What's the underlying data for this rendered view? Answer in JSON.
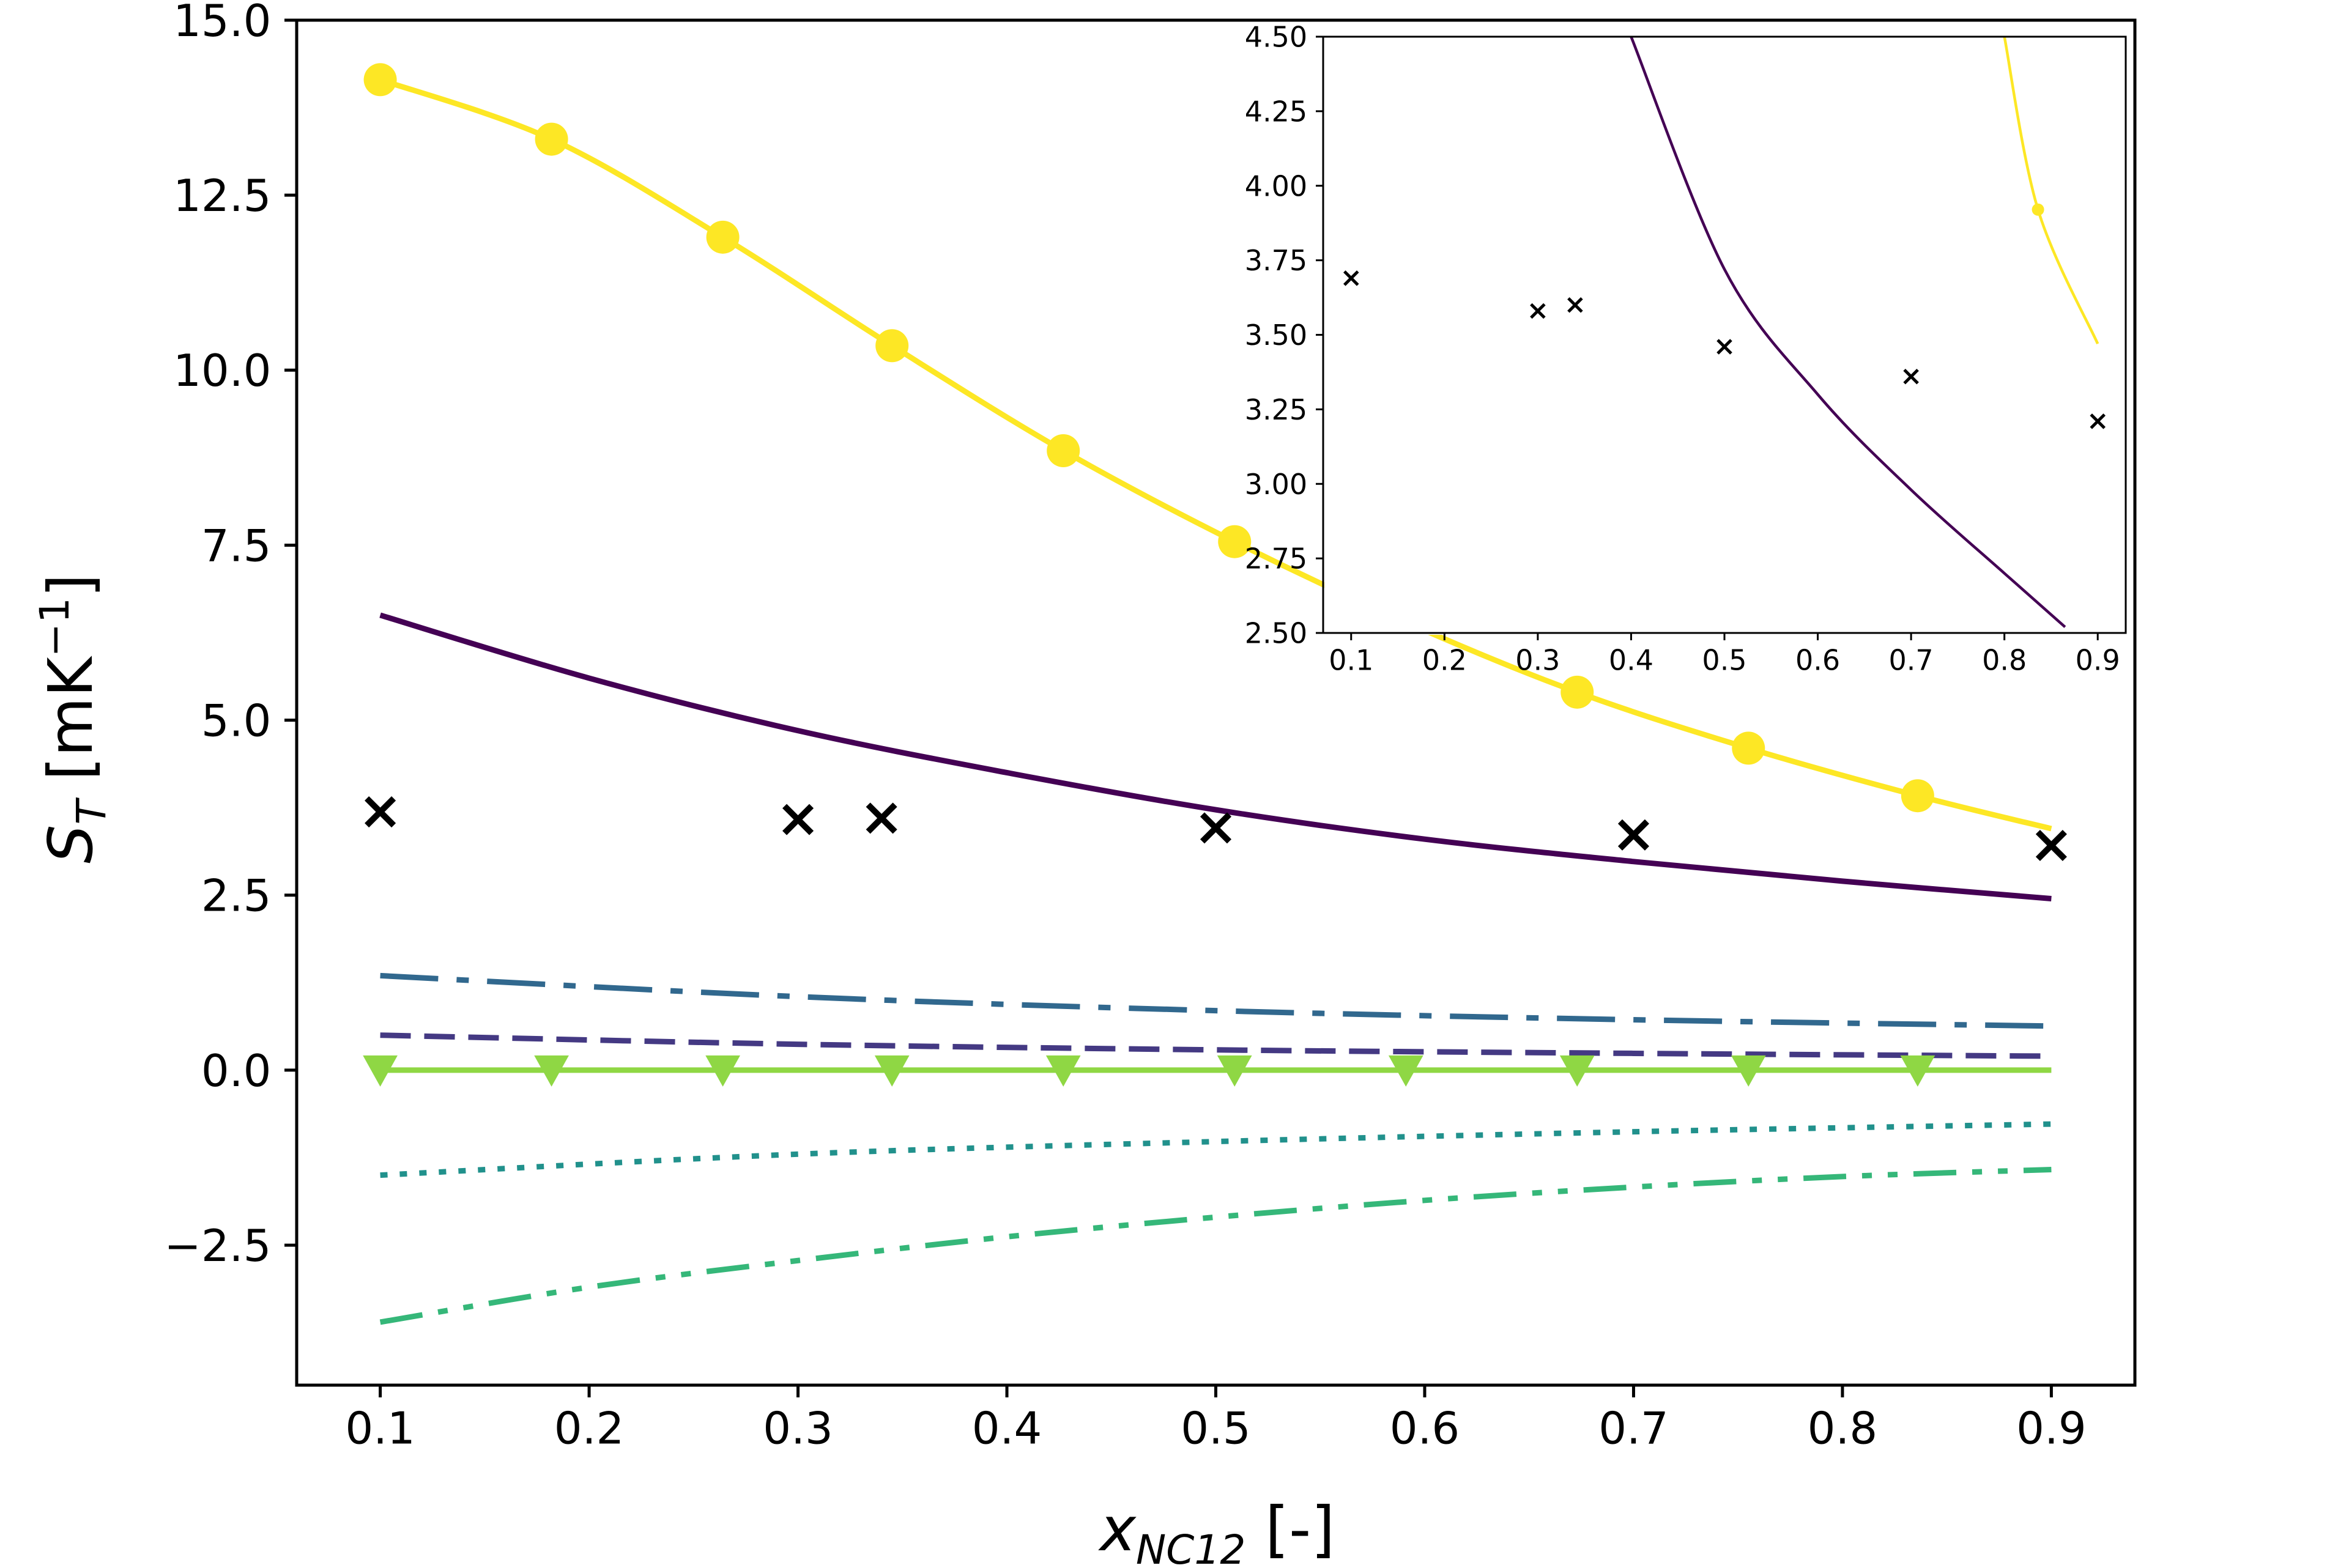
{
  "chart_data": [
    {
      "type": "line",
      "xlabel": "x_NC12 [-]",
      "ylabel": "S_T [mK^-1]",
      "xlim": [
        0.06,
        0.94
      ],
      "ylim": [
        -4.5,
        15.0
      ],
      "xticks": [
        0.1,
        0.2,
        0.3,
        0.4,
        0.5,
        0.6,
        0.7,
        0.8,
        0.9
      ],
      "xtick_labels": [
        "0.1",
        "0.2",
        "0.3",
        "0.4",
        "0.5",
        "0.6",
        "0.7",
        "0.8",
        "0.9"
      ],
      "yticks": [
        15.0,
        12.5,
        10.0,
        7.5,
        5.0,
        2.5,
        0.0,
        -2.5
      ],
      "ytick_labels": [
        "15.0",
        "12.5",
        "10.0",
        "7.5",
        "5.0",
        "2.5",
        "0.0",
        "−2.5"
      ],
      "grid": false,
      "legend": "none",
      "series": [
        {
          "style": "solid-circle",
          "color": "#fde725",
          "x": [
            0.1,
            0.182,
            0.264,
            0.345,
            0.427,
            0.509,
            0.591,
            0.673,
            0.755,
            0.836,
            0.9
          ],
          "y": [
            14.15,
            13.3,
            11.9,
            10.35,
            8.85,
            7.55,
            6.4,
            5.4,
            4.6,
            3.92,
            3.45
          ],
          "markers_at": [
            0.1,
            0.182,
            0.264,
            0.345,
            0.427,
            0.509,
            0.673,
            0.755,
            0.836
          ]
        },
        {
          "style": "solid",
          "color": "#440154",
          "x": [
            0.1,
            0.2,
            0.3,
            0.4,
            0.5,
            0.6,
            0.7,
            0.8,
            0.9
          ],
          "y": [
            6.5,
            5.6,
            4.85,
            4.25,
            3.72,
            3.3,
            2.98,
            2.7,
            2.45
          ]
        },
        {
          "style": "dashdot",
          "color": "#31688e",
          "x": [
            0.1,
            0.3,
            0.5,
            0.7,
            0.9
          ],
          "y": [
            1.35,
            1.05,
            0.85,
            0.72,
            0.63
          ]
        },
        {
          "style": "dashed",
          "color": "#443983",
          "x": [
            0.1,
            0.3,
            0.5,
            0.7,
            0.9
          ],
          "y": [
            0.5,
            0.37,
            0.29,
            0.24,
            0.2
          ]
        },
        {
          "style": "solid-triangle",
          "color": "#8fd744",
          "x": [
            0.1,
            0.9
          ],
          "y": [
            0.0,
            0.0
          ],
          "markers_at": [
            0.1,
            0.182,
            0.264,
            0.345,
            0.427,
            0.509,
            0.591,
            0.673,
            0.755,
            0.836
          ]
        },
        {
          "style": "dotted",
          "color": "#21918c",
          "x": [
            0.1,
            0.3,
            0.5,
            0.7,
            0.9
          ],
          "y": [
            -1.5,
            -1.2,
            -1.02,
            -0.88,
            -0.77
          ]
        },
        {
          "style": "dashdotdot",
          "color": "#35b779",
          "x": [
            0.1,
            0.2,
            0.3,
            0.4,
            0.5,
            0.6,
            0.7,
            0.8,
            0.9
          ],
          "y": [
            -3.6,
            -3.1,
            -2.72,
            -2.38,
            -2.1,
            -1.86,
            -1.67,
            -1.52,
            -1.42
          ]
        },
        {
          "style": "x-markers",
          "color": "#000000",
          "x": [
            0.1,
            0.3,
            0.34,
            0.5,
            0.7,
            0.9
          ],
          "y": [
            3.69,
            3.58,
            3.6,
            3.46,
            3.36,
            3.21
          ]
        }
      ]
    },
    {
      "type": "line",
      "inset": true,
      "xlim": [
        0.07,
        0.93
      ],
      "ylim": [
        2.5,
        4.5
      ],
      "xticks": [
        0.1,
        0.2,
        0.3,
        0.4,
        0.5,
        0.6,
        0.7,
        0.8,
        0.9
      ],
      "xtick_labels": [
        "0.1",
        "0.2",
        "0.3",
        "0.4",
        "0.5",
        "0.6",
        "0.7",
        "0.8",
        "0.9"
      ],
      "yticks": [
        4.5,
        4.25,
        4.0,
        3.75,
        3.5,
        3.25,
        3.0,
        2.75,
        2.5
      ],
      "ytick_labels": [
        "4.50",
        "4.25",
        "4.00",
        "3.75",
        "3.50",
        "3.25",
        "3.00",
        "2.75",
        "2.50"
      ],
      "grid": false,
      "legend": "none",
      "series": [
        {
          "style": "solid",
          "color": "#440154",
          "x": [
            0.4,
            0.5,
            0.6,
            0.7,
            0.8,
            0.865
          ],
          "y": [
            4.5,
            3.72,
            3.3,
            2.98,
            2.7,
            2.52
          ]
        },
        {
          "style": "solid-circle",
          "color": "#fde725",
          "x": [
            0.8,
            0.836,
            0.9
          ],
          "y": [
            4.5,
            3.92,
            3.47
          ],
          "markers_at": [
            0.836
          ]
        },
        {
          "style": "x-markers",
          "color": "#000000",
          "x": [
            0.1,
            0.3,
            0.34,
            0.5,
            0.7,
            0.9
          ],
          "y": [
            3.69,
            3.58,
            3.6,
            3.46,
            3.36,
            3.21
          ]
        }
      ]
    }
  ]
}
